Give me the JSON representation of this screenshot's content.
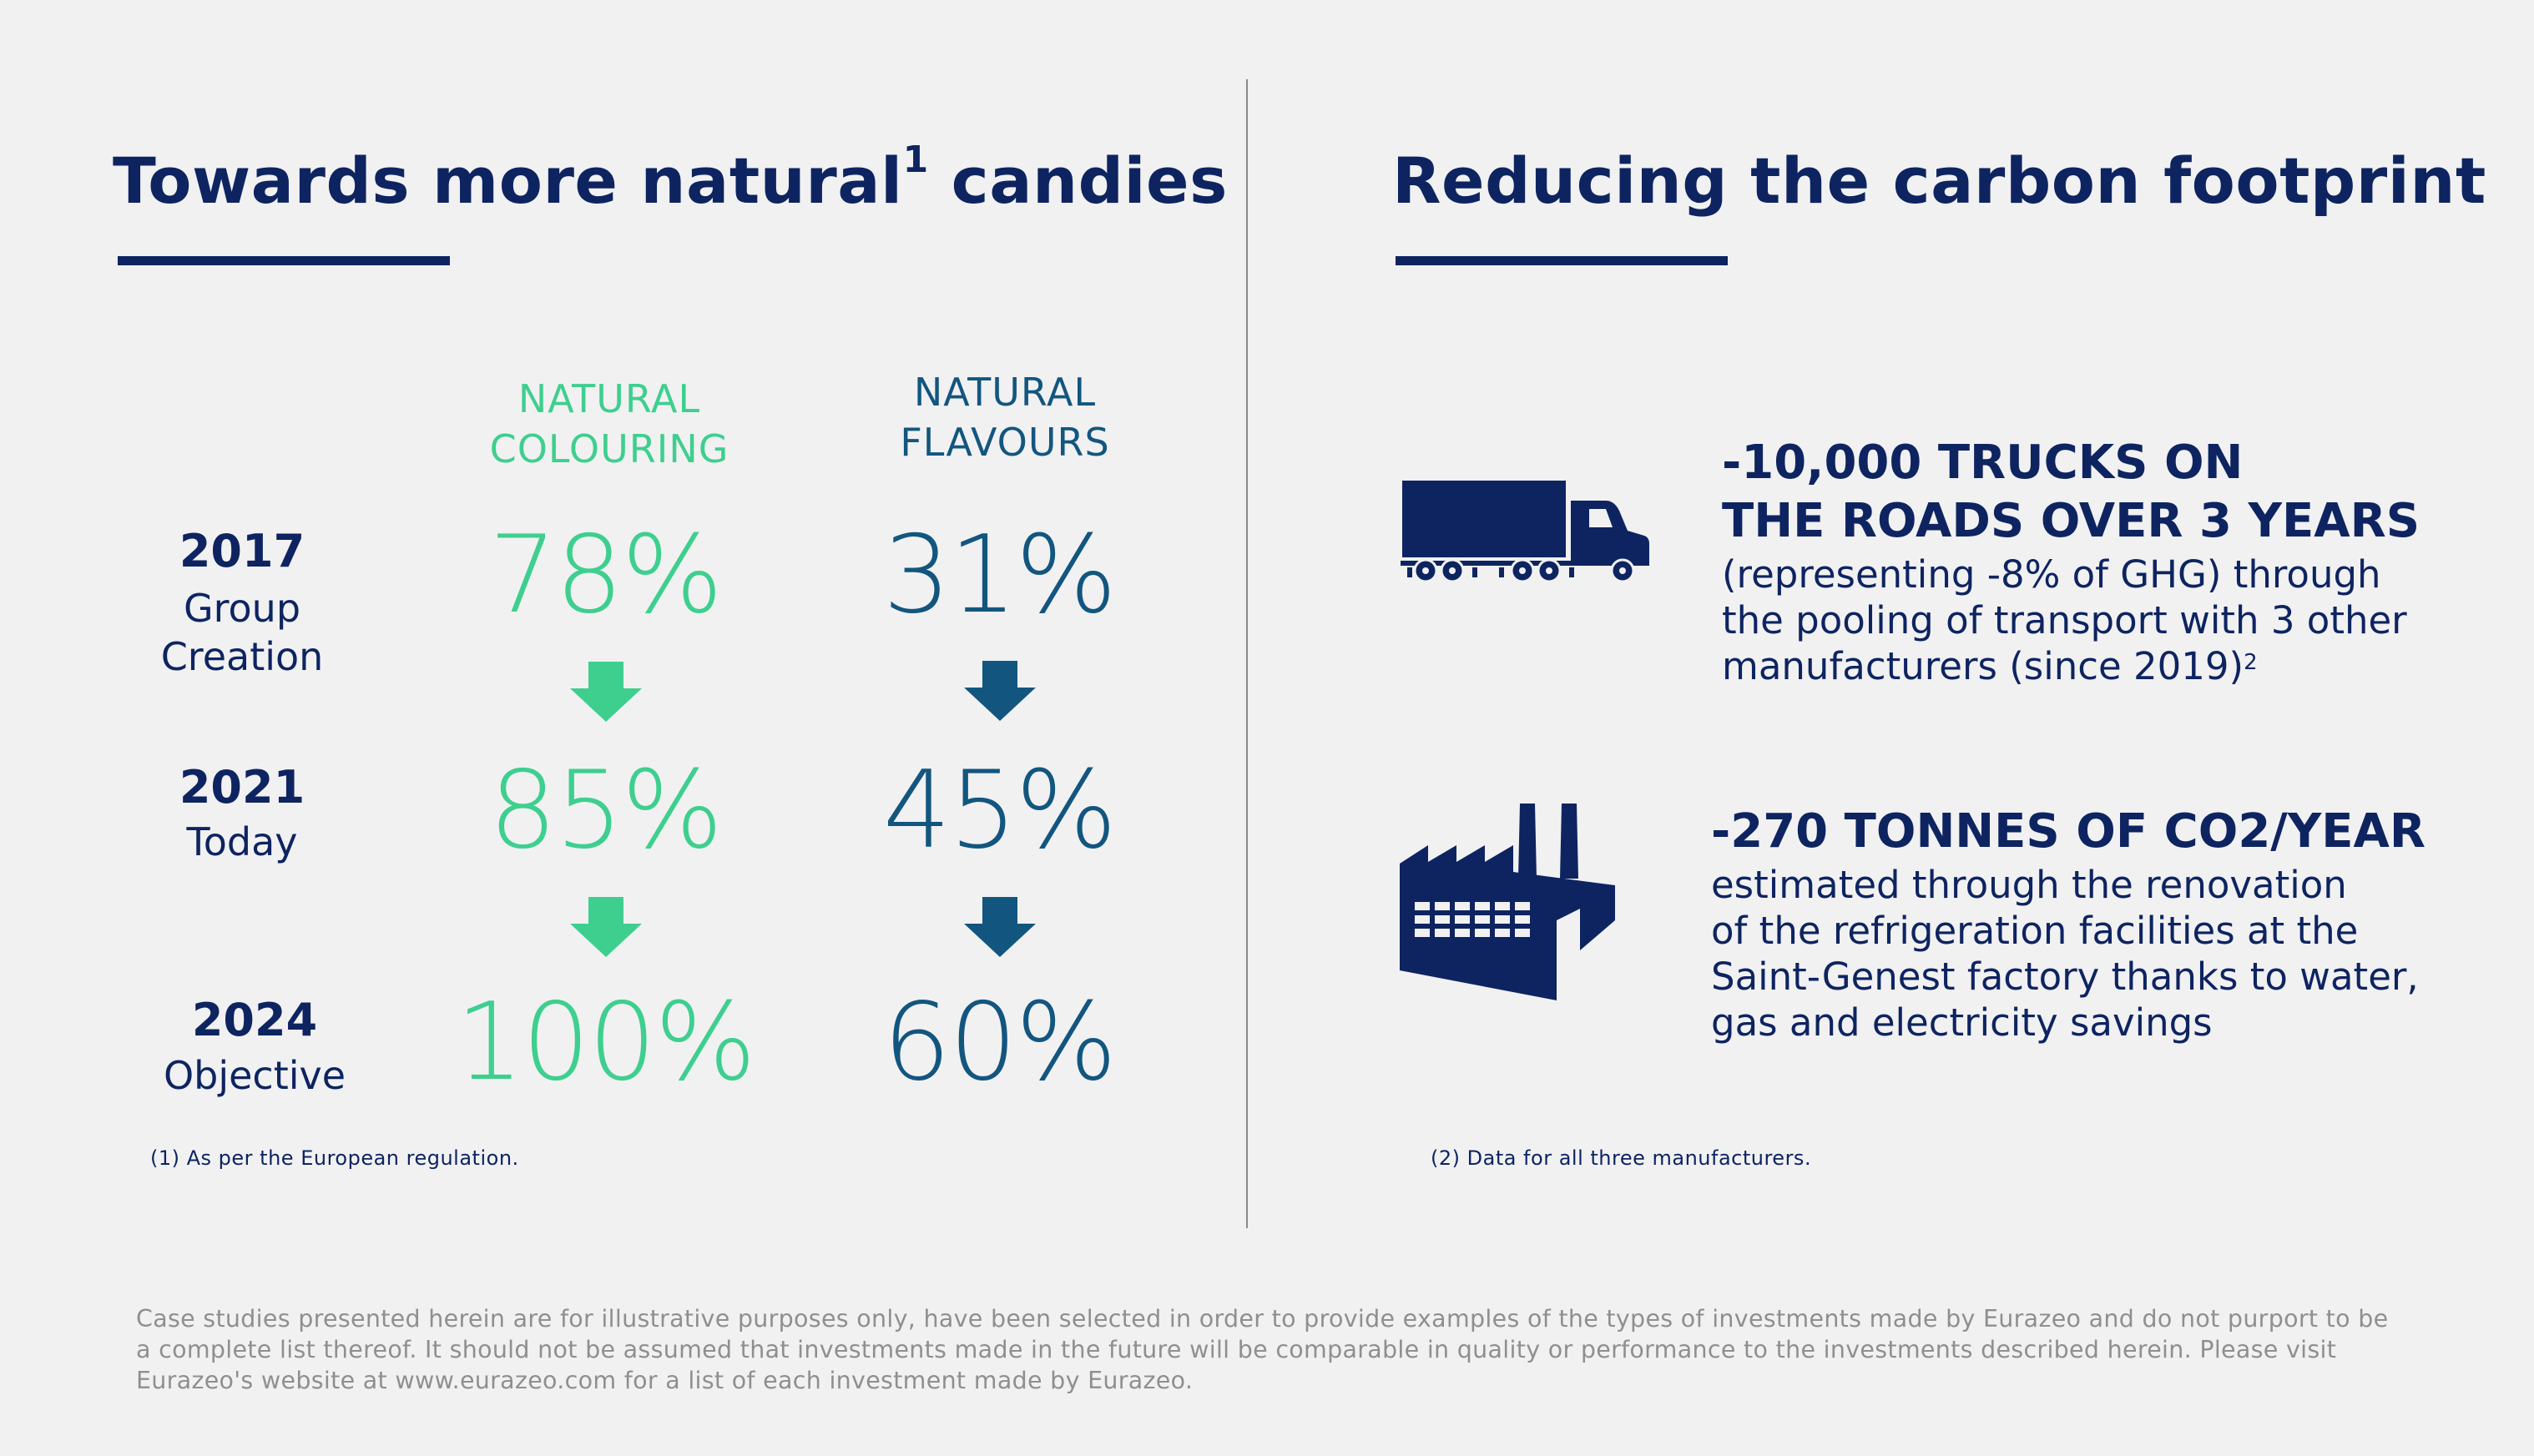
{
  "left": {
    "title": "Towards more natural",
    "title_sup": "1",
    "title_rest": " candies",
    "columns": {
      "colouring": [
        "NATURAL",
        "COLOURING"
      ],
      "flavours": [
        "NATURAL",
        "FLAVOURS"
      ]
    },
    "rows": [
      {
        "year": "2017",
        "label": [
          "Group",
          "Creation"
        ],
        "colouring": "78%",
        "flavours": "31%"
      },
      {
        "year": "2021",
        "label": [
          "Today"
        ],
        "colouring": "85%",
        "flavours": "45%"
      },
      {
        "year": "2024",
        "label": [
          "Objective"
        ],
        "colouring": "100%",
        "flavours": "60%"
      }
    ],
    "footnote": "(1) As per the European regulation."
  },
  "right": {
    "title": "Reducing the carbon footprint",
    "items": [
      {
        "icon": "truck-icon",
        "heading": [
          "-10,000 TRUCKS ON",
          "THE ROADS OVER 3 YEARS"
        ],
        "body": [
          "(representing -8% of GHG) through",
          "the pooling of transport with 3 other",
          "manufacturers (since 2019)"
        ],
        "body_sup": "2"
      },
      {
        "icon": "factory-icon",
        "heading": [
          "-270 TONNES OF CO2/YEAR"
        ],
        "body": [
          "estimated through the renovation",
          "of the refrigeration facilities at the",
          "Saint-Genest factory thanks to water,",
          "gas and electricity savings"
        ]
      }
    ],
    "footnote": "(2) Data for all three manufacturers."
  },
  "disclaimer": [
    "Case studies presented herein are for illustrative purposes only, have been selected in order to provide examples of the types of investments made by Eurazeo and do not purport to be",
    "a complete list thereof.  It should not be assumed that investments made in the future will be comparable in quality or performance to the investments described herein.  Please visit",
    "Eurazeo's website at www.eurazeo.com for a list of each investment made by Eurazeo."
  ],
  "colors": {
    "navy": "#0e2461",
    "green": "#3ecf8e",
    "blue": "#12567f",
    "background": "#f1f1f2"
  }
}
